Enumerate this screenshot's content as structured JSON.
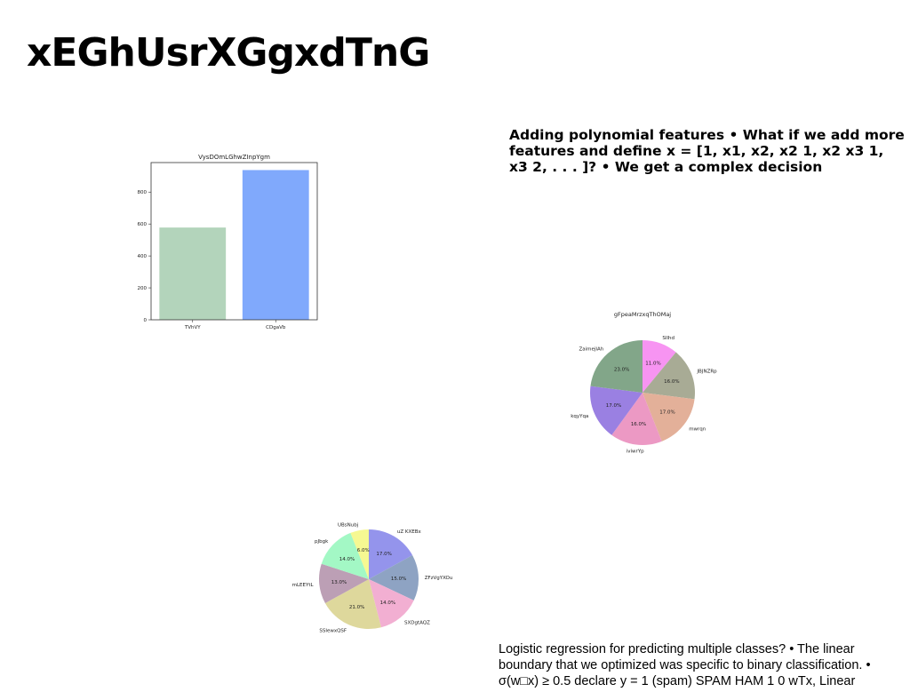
{
  "slide": {
    "title": "xEGhUsrXGgxdTnG",
    "bullet_text": "Adding polynomial features • What if we add more features and define x = [1, x1, x2, x2 1, x2 x3 1, x3 2, . . . ]? • We get a complex decision",
    "footer_text": "Logistic regression for predicting multiple classes? • The linear boundary that we optimized was specific to binary classification. • σ(w□x) ≥ 0.5 declare y = 1 (spam) SPAM HAM 1 0 wTx, Linear"
  },
  "chart_data": [
    {
      "type": "bar",
      "title": "VysDOmLGhwZInpYgm",
      "categories": [
        "TVhVY",
        "CDgaVb"
      ],
      "values": [
        578,
        938
      ],
      "colors": [
        "#b3d4bb",
        "#80a9fc"
      ],
      "ylim": [
        0,
        985
      ],
      "yticks": [
        0,
        200,
        400,
        600,
        800
      ],
      "xlabel": "",
      "ylabel": ""
    },
    {
      "type": "pie",
      "title": "gFpeaMrzxqThOMaj",
      "labels": [
        "SIlhd",
        "JBJNZRp",
        "mwrqn",
        "iviwrYp",
        "kqyYqa",
        "ZaimejIAh"
      ],
      "values": [
        11.0,
        16.0,
        17.0,
        16.0,
        17.0,
        23.0
      ],
      "pct_labels": [
        "11.0%",
        "16.0%",
        "17.0%",
        "16.0%",
        "17.0%",
        "23.0%"
      ],
      "colors": [
        "#f794f2",
        "#a8ab95",
        "#e3b099",
        "#ec99c4",
        "#9a80e2",
        "#82a689"
      ]
    },
    {
      "type": "pie",
      "title": "",
      "labels": [
        "uZ KXEBx",
        "ZFzVgYXOu",
        "SXDgtAQZ",
        "SSIewxQSF",
        "mLEEYtL",
        "pJbgk",
        "UBsNubj"
      ],
      "values": [
        17.0,
        15.0,
        14.0,
        21.0,
        13.0,
        14.0,
        6.0
      ],
      "pct_labels": [
        "17.0%",
        "15.0%",
        "14.0%",
        "21.0%",
        "13.0%",
        "14.0%",
        "6.0%"
      ],
      "colors": [
        "#9494ec",
        "#8ea3c3",
        "#f2afd2",
        "#ded89c",
        "#bc9fb5",
        "#a3f8c5",
        "#f6f892"
      ]
    }
  ]
}
